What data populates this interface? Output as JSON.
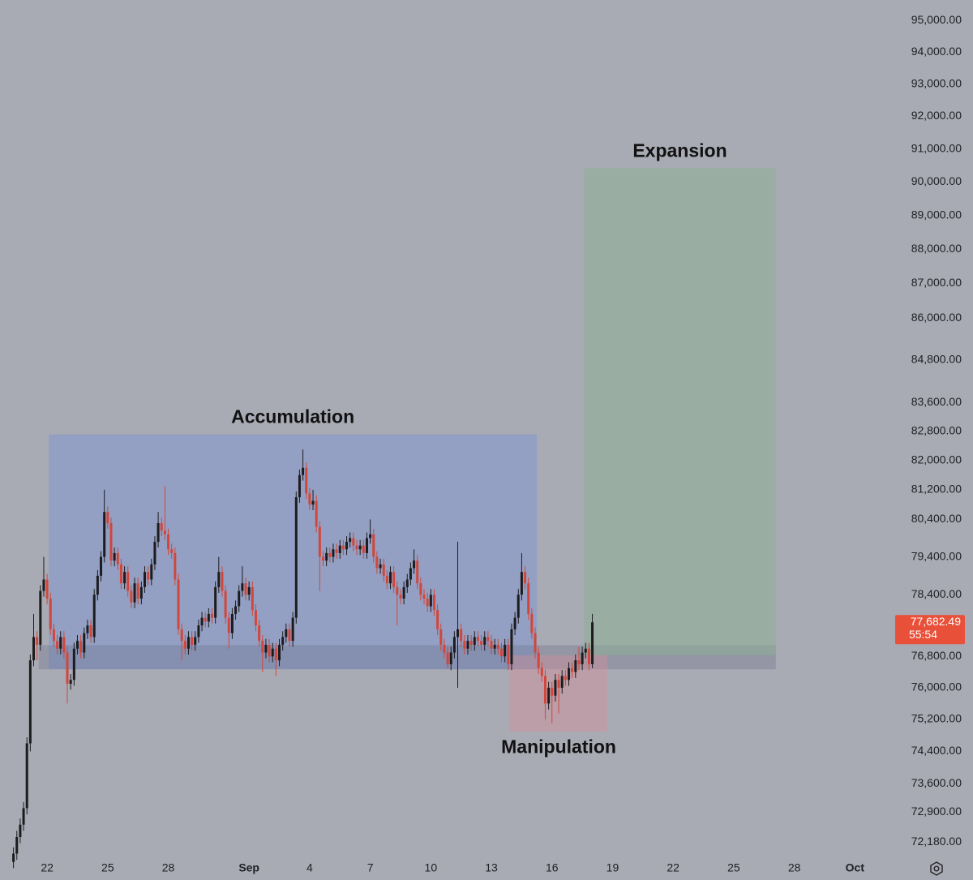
{
  "chart_data": {
    "type": "candlestick",
    "log": true,
    "ylim": [
      71850,
      95650
    ],
    "yticks": [
      {
        "value": 95000,
        "label": "95,000.00"
      },
      {
        "value": 94000,
        "label": "94,000.00"
      },
      {
        "value": 93000,
        "label": "93,000.00"
      },
      {
        "value": 92000,
        "label": "92,000.00"
      },
      {
        "value": 91000,
        "label": "91,000.00"
      },
      {
        "value": 90000,
        "label": "90,000.00"
      },
      {
        "value": 89000,
        "label": "89,000.00"
      },
      {
        "value": 88000,
        "label": "88,000.00"
      },
      {
        "value": 87000,
        "label": "87,000.00"
      },
      {
        "value": 86000,
        "label": "86,000.00"
      },
      {
        "value": 84800,
        "label": "84,800.00"
      },
      {
        "value": 83600,
        "label": "83,600.00"
      },
      {
        "value": 82800,
        "label": "82,800.00"
      },
      {
        "value": 82000,
        "label": "82,000.00"
      },
      {
        "value": 81200,
        "label": "81,200.00"
      },
      {
        "value": 80400,
        "label": "80,400.00"
      },
      {
        "value": 79400,
        "label": "79,400.00"
      },
      {
        "value": 78400,
        "label": "78,400.00"
      },
      {
        "value": 76800,
        "label": "76,800.00"
      },
      {
        "value": 76000,
        "label": "76,000.00"
      },
      {
        "value": 75200,
        "label": "75,200.00"
      },
      {
        "value": 74400,
        "label": "74,400.00"
      },
      {
        "value": 73600,
        "label": "73,600.00"
      },
      {
        "value": 72900,
        "label": "72,900.00"
      },
      {
        "value": 72180,
        "label": "72,180.00"
      }
    ],
    "xlim": [
      -4,
      261
    ],
    "xticks": [
      {
        "value": 10,
        "label": "22"
      },
      {
        "value": 28,
        "label": "25"
      },
      {
        "value": 46,
        "label": "28"
      },
      {
        "value": 70,
        "label": "Sep"
      },
      {
        "value": 88,
        "label": "4"
      },
      {
        "value": 106,
        "label": "7"
      },
      {
        "value": 124,
        "label": "10"
      },
      {
        "value": 142,
        "label": "13"
      },
      {
        "value": 160,
        "label": "16"
      },
      {
        "value": 178,
        "label": "19"
      },
      {
        "value": 196,
        "label": "22"
      },
      {
        "value": 214,
        "label": "25"
      },
      {
        "value": 232,
        "label": "28"
      },
      {
        "value": 250,
        "label": "Oct"
      }
    ],
    "up_color": "#1c1c1f",
    "down_color": "#d2463b",
    "ohlc": [
      [
        71700,
        72050,
        71550,
        71900
      ],
      [
        71900,
        72450,
        71750,
        72300
      ],
      [
        72300,
        72750,
        72150,
        72600
      ],
      [
        72600,
        73150,
        72450,
        73000
      ],
      [
        73000,
        74750,
        72850,
        74600
      ],
      [
        74600,
        76850,
        74400,
        76700
      ],
      [
        76700,
        77900,
        76550,
        77300
      ],
      [
        77300,
        77450,
        76700,
        77100
      ],
      [
        77100,
        78650,
        76950,
        78500
      ],
      [
        78500,
        79400,
        78350,
        78800
      ],
      [
        78800,
        78950,
        78150,
        78300
      ],
      [
        78300,
        78450,
        77350,
        77500
      ],
      [
        77500,
        77650,
        77050,
        77200
      ],
      [
        77200,
        77350,
        76850,
        77000
      ],
      [
        77000,
        77450,
        76850,
        77300
      ],
      [
        77300,
        77450,
        76750,
        76900
      ],
      [
        76900,
        77050,
        75600,
        76100
      ],
      [
        76100,
        76350,
        75950,
        76200
      ],
      [
        76200,
        77150,
        76050,
        77000
      ],
      [
        77000,
        77350,
        76850,
        77200
      ],
      [
        77200,
        77350,
        76750,
        76900
      ],
      [
        76900,
        77550,
        76750,
        77400
      ],
      [
        77400,
        77750,
        77250,
        77600
      ],
      [
        77600,
        77750,
        77150,
        77300
      ],
      [
        77300,
        78550,
        77150,
        78400
      ],
      [
        78400,
        79050,
        78250,
        78900
      ],
      [
        78900,
        79550,
        78750,
        79400
      ],
      [
        79400,
        81200,
        79250,
        80600
      ],
      [
        80600,
        80750,
        80150,
        80300
      ],
      [
        80300,
        80450,
        79150,
        79300
      ],
      [
        79300,
        79650,
        79150,
        79500
      ],
      [
        79500,
        79650,
        79050,
        79200
      ],
      [
        79200,
        79350,
        78550,
        78700
      ],
      [
        78700,
        79150,
        78550,
        79000
      ],
      [
        79000,
        79150,
        78350,
        78500
      ],
      [
        78500,
        78650,
        78050,
        78200
      ],
      [
        78200,
        78850,
        78050,
        78700
      ],
      [
        78700,
        78850,
        78150,
        78300
      ],
      [
        78300,
        78750,
        78150,
        78600
      ],
      [
        78600,
        79150,
        78450,
        79000
      ],
      [
        79000,
        79150,
        78650,
        78800
      ],
      [
        78800,
        79350,
        78650,
        79200
      ],
      [
        79200,
        79950,
        79050,
        79800
      ],
      [
        79800,
        80600,
        79650,
        80300
      ],
      [
        80300,
        80450,
        79950,
        80100
      ],
      [
        80100,
        81300,
        79850,
        80000
      ],
      [
        80000,
        80150,
        79450,
        79600
      ],
      [
        79600,
        79750,
        79350,
        79500
      ],
      [
        79500,
        79650,
        78650,
        78800
      ],
      [
        78800,
        78950,
        77350,
        77500
      ],
      [
        77500,
        77650,
        76700,
        77200
      ],
      [
        77200,
        77350,
        76850,
        77000
      ],
      [
        77000,
        77450,
        76850,
        77300
      ],
      [
        77300,
        77450,
        76950,
        77100
      ],
      [
        77100,
        77450,
        76950,
        77300
      ],
      [
        77300,
        77750,
        77150,
        77600
      ],
      [
        77600,
        77950,
        77450,
        77800
      ],
      [
        77800,
        77950,
        77550,
        77700
      ],
      [
        77700,
        78050,
        77550,
        77900
      ],
      [
        77900,
        78050,
        77650,
        77800
      ],
      [
        77800,
        78750,
        77650,
        78600
      ],
      [
        78600,
        79400,
        78450,
        79000
      ],
      [
        79000,
        79150,
        78350,
        78500
      ],
      [
        78500,
        78650,
        77650,
        77800
      ],
      [
        77800,
        77950,
        77000,
        77400
      ],
      [
        77400,
        78050,
        77250,
        77900
      ],
      [
        77900,
        78250,
        77750,
        78100
      ],
      [
        78100,
        78650,
        77950,
        78500
      ],
      [
        78500,
        79150,
        78350,
        78700
      ],
      [
        78700,
        78850,
        78250,
        78400
      ],
      [
        78400,
        78750,
        78250,
        78600
      ],
      [
        78600,
        78750,
        77850,
        78000
      ],
      [
        78000,
        78150,
        77450,
        77600
      ],
      [
        77600,
        77750,
        77050,
        77200
      ],
      [
        77200,
        77350,
        76400,
        76900
      ],
      [
        76900,
        77250,
        76750,
        77100
      ],
      [
        77100,
        77250,
        76650,
        76800
      ],
      [
        76800,
        77150,
        76650,
        77000
      ],
      [
        77000,
        77150,
        76300,
        76700
      ],
      [
        76700,
        77250,
        76550,
        77100
      ],
      [
        77100,
        77450,
        76950,
        77300
      ],
      [
        77300,
        77650,
        77150,
        77500
      ],
      [
        77500,
        77650,
        77050,
        77200
      ],
      [
        77200,
        77950,
        77050,
        77800
      ],
      [
        77800,
        81150,
        77650,
        81000
      ],
      [
        81000,
        81750,
        80850,
        81600
      ],
      [
        81600,
        82300,
        81450,
        81800
      ],
      [
        81800,
        81950,
        80950,
        81100
      ],
      [
        81100,
        81250,
        80650,
        80800
      ],
      [
        80800,
        81200,
        80650,
        80900
      ],
      [
        80900,
        81050,
        80050,
        80200
      ],
      [
        80200,
        80350,
        78500,
        79400
      ],
      [
        79400,
        79550,
        79150,
        79300
      ],
      [
        79300,
        79650,
        79150,
        79500
      ],
      [
        79500,
        79650,
        79250,
        79400
      ],
      [
        79400,
        79750,
        79250,
        79600
      ],
      [
        79600,
        79750,
        79350,
        79500
      ],
      [
        79500,
        79850,
        79350,
        79700
      ],
      [
        79700,
        79850,
        79450,
        79600
      ],
      [
        79600,
        79950,
        79450,
        79800
      ],
      [
        79800,
        80050,
        79650,
        79900
      ],
      [
        79900,
        80050,
        79550,
        79700
      ],
      [
        79700,
        79850,
        79450,
        79600
      ],
      [
        79600,
        79850,
        79450,
        79700
      ],
      [
        79700,
        79850,
        79350,
        79500
      ],
      [
        79500,
        80050,
        79350,
        79900
      ],
      [
        79900,
        80400,
        79750,
        80000
      ],
      [
        80000,
        80150,
        79250,
        79400
      ],
      [
        79400,
        79550,
        78950,
        79100
      ],
      [
        79100,
        79350,
        78950,
        79200
      ],
      [
        79200,
        79350,
        78750,
        78900
      ],
      [
        78900,
        79050,
        78550,
        78700
      ],
      [
        78700,
        79150,
        78550,
        79000
      ],
      [
        79000,
        79150,
        78450,
        78600
      ],
      [
        78600,
        78750,
        77600,
        78400
      ],
      [
        78400,
        78550,
        78150,
        78300
      ],
      [
        78300,
        78750,
        78150,
        78600
      ],
      [
        78600,
        78950,
        78450,
        78800
      ],
      [
        78800,
        79250,
        78650,
        79100
      ],
      [
        79100,
        79600,
        78950,
        79300
      ],
      [
        79300,
        79450,
        78550,
        78700
      ],
      [
        78700,
        78850,
        78250,
        78400
      ],
      [
        78400,
        78550,
        78150,
        78300
      ],
      [
        78300,
        78450,
        77950,
        78100
      ],
      [
        78100,
        78550,
        77950,
        78400
      ],
      [
        78400,
        78550,
        77850,
        78000
      ],
      [
        78000,
        78150,
        77350,
        77500
      ],
      [
        77500,
        77650,
        76950,
        77100
      ],
      [
        77100,
        77250,
        76750,
        76900
      ],
      [
        76900,
        77050,
        76500,
        76600
      ],
      [
        76600,
        77050,
        76450,
        76900
      ],
      [
        76900,
        77450,
        76750,
        77300
      ],
      [
        77300,
        79800,
        76000,
        77500
      ],
      [
        77500,
        77650,
        77050,
        77200
      ],
      [
        77200,
        77350,
        76850,
        77000
      ],
      [
        77000,
        77350,
        76850,
        77200
      ],
      [
        77200,
        77350,
        76950,
        77100
      ],
      [
        77100,
        77450,
        76950,
        77300
      ],
      [
        77300,
        77450,
        77050,
        77200
      ],
      [
        77200,
        77350,
        76950,
        77100
      ],
      [
        77100,
        77450,
        76950,
        77300
      ],
      [
        77300,
        77450,
        77050,
        77200
      ],
      [
        77200,
        77350,
        76850,
        77000
      ],
      [
        77000,
        77250,
        76850,
        77100
      ],
      [
        77100,
        77250,
        76850,
        77000
      ],
      [
        77000,
        77150,
        76650,
        76800
      ],
      [
        76800,
        77250,
        76650,
        77100
      ],
      [
        77100,
        77250,
        76450,
        76600
      ],
      [
        76600,
        77650,
        76450,
        77500
      ],
      [
        77500,
        77950,
        77350,
        77800
      ],
      [
        77800,
        78550,
        77650,
        78400
      ],
      [
        78400,
        79500,
        78250,
        79000
      ],
      [
        79000,
        79150,
        78550,
        78700
      ],
      [
        78700,
        78850,
        77750,
        77900
      ],
      [
        77900,
        78050,
        77250,
        77400
      ],
      [
        77400,
        77550,
        76750,
        76900
      ],
      [
        76900,
        77050,
        76350,
        76500
      ],
      [
        76500,
        76650,
        76150,
        76300
      ],
      [
        76300,
        76450,
        75200,
        75600
      ],
      [
        75600,
        76150,
        75450,
        76000
      ],
      [
        76000,
        76150,
        75100,
        75800
      ],
      [
        75800,
        76350,
        75650,
        76200
      ],
      [
        76200,
        76350,
        75350,
        76000
      ],
      [
        76000,
        76450,
        75850,
        76300
      ],
      [
        76300,
        76450,
        76050,
        76200
      ],
      [
        76200,
        76650,
        76050,
        76500
      ],
      [
        76500,
        76650,
        76250,
        76400
      ],
      [
        76400,
        76850,
        76250,
        76700
      ],
      [
        76700,
        77050,
        76450,
        76600
      ],
      [
        76600,
        77050,
        76450,
        76900
      ],
      [
        76900,
        77150,
        76750,
        77000
      ],
      [
        77000,
        77150,
        76450,
        76600
      ],
      [
        76600,
        77900,
        76500,
        77682.49
      ]
    ],
    "zones": [
      {
        "label": "Accumulation",
        "label_position": "above",
        "from": 10.5,
        "to": 155.5,
        "top": 82720,
        "bottom": 76470,
        "color": "rgba(125,150,210,0.5)"
      },
      {
        "from": 7.5,
        "to": 226.5,
        "top": 77090,
        "bottom": 76470,
        "color": "rgba(110,112,140,0.35)"
      },
      {
        "label": "Manipulation",
        "label_position": "below",
        "from": 147.5,
        "to": 176.5,
        "top": 76830,
        "bottom": 74890,
        "color": "rgba(215,140,150,0.4)"
      },
      {
        "label": "Expansion",
        "label_position": "above",
        "from": 169.5,
        "to": 226.5,
        "top": 90420,
        "bottom": 76830,
        "color": "rgba(140,175,145,0.5)"
      }
    ],
    "last_price": {
      "value": 77682.49,
      "label": "77,682.49"
    },
    "countdown": "55:54",
    "last_price_color": "#e8503a"
  }
}
